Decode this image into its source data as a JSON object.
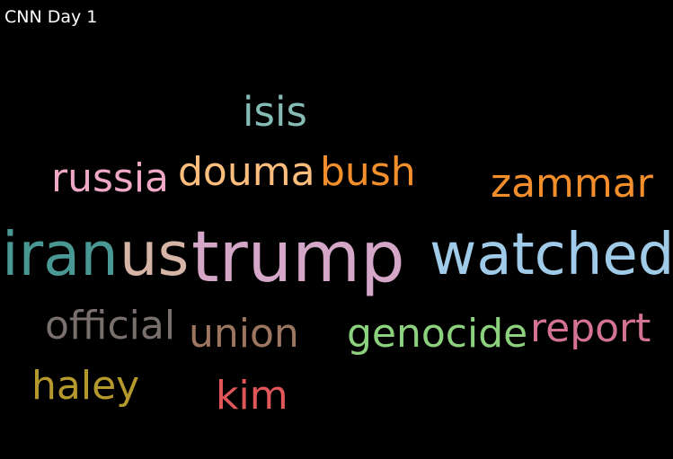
{
  "title": "CNN Day 1",
  "words": [
    {
      "text": "isis",
      "color": "#86bcb6"
    },
    {
      "text": "russia",
      "color": "#f1a7c6"
    },
    {
      "text": "douma",
      "color": "#ffbe7d"
    },
    {
      "text": "bush",
      "color": "#f28e2b"
    },
    {
      "text": "zammar",
      "color": "#f28e2b"
    },
    {
      "text": "iran",
      "color": "#499894"
    },
    {
      "text": "us",
      "color": "#d7b5a6"
    },
    {
      "text": "trump",
      "color": "#d4a6c8"
    },
    {
      "text": "watched",
      "color": "#a0cbe8"
    },
    {
      "text": "official",
      "color": "#79706e"
    },
    {
      "text": "union",
      "color": "#9d7660"
    },
    {
      "text": "genocide",
      "color": "#8cd17d"
    },
    {
      "text": "report",
      "color": "#d37295"
    },
    {
      "text": "haley",
      "color": "#b6992d"
    },
    {
      "text": "kim",
      "color": "#e15759"
    }
  ]
}
